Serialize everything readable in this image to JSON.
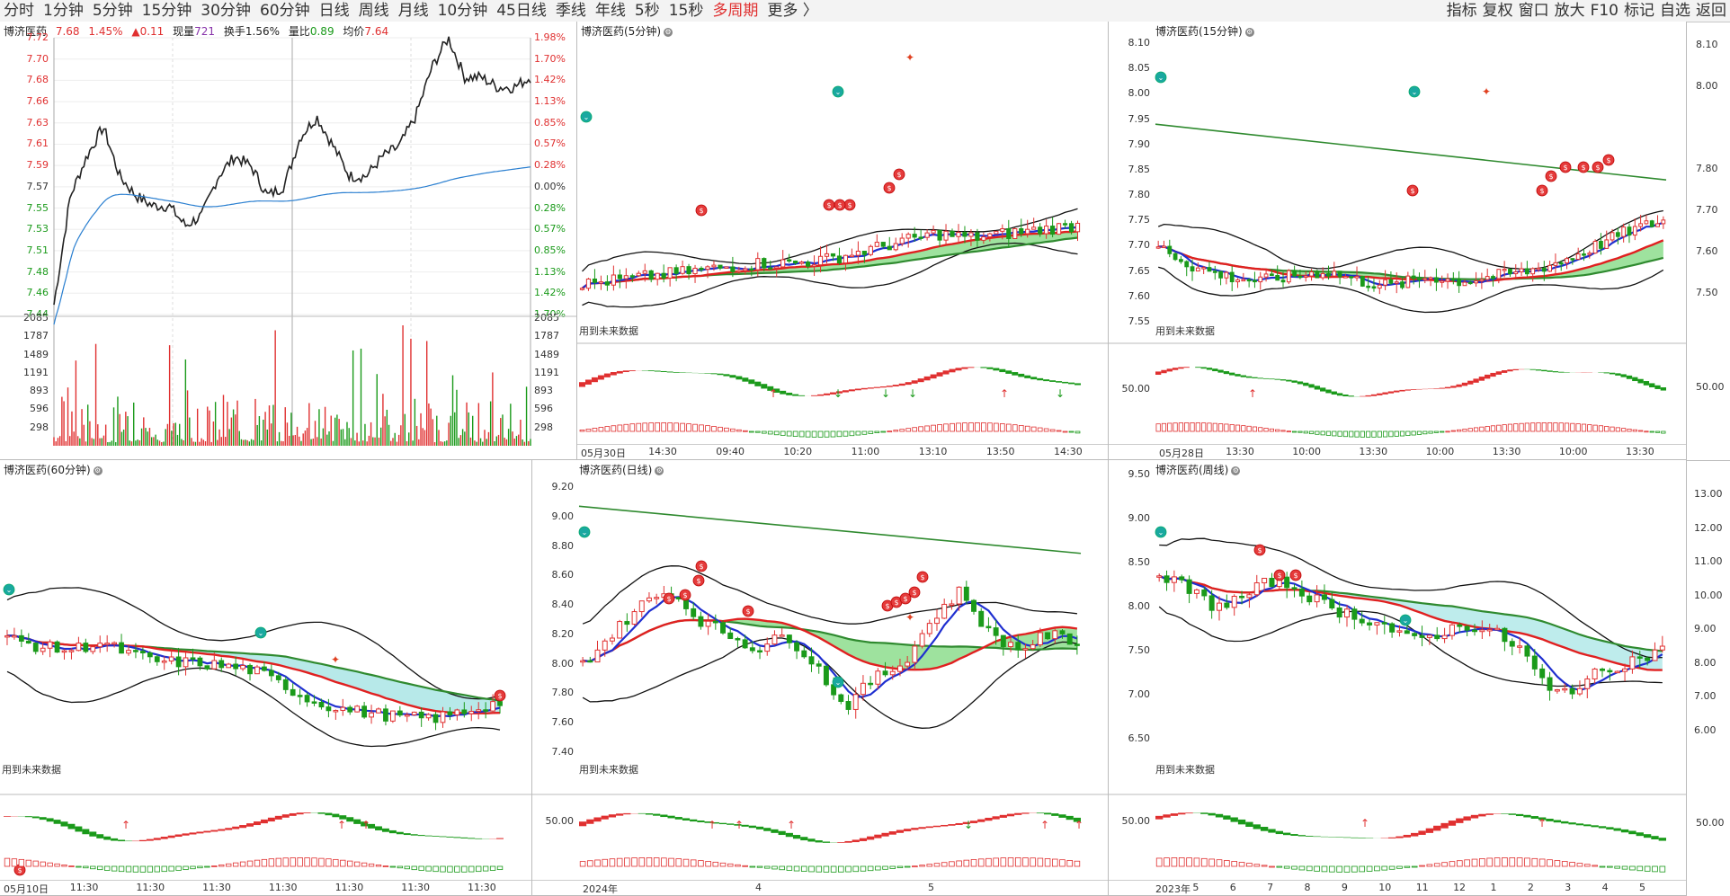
{
  "toolbar": {
    "periods": [
      "分时",
      "1分钟",
      "5分钟",
      "15分钟",
      "30分钟",
      "60分钟",
      "日线",
      "周线",
      "月线",
      "10分钟",
      "45日线",
      "季线",
      "年线",
      "5秒",
      "15秒",
      "多周期",
      "更多 〉"
    ],
    "active_period": "多周期",
    "tools": [
      "指标",
      "复权",
      "窗口",
      "放大",
      "F10",
      "标记",
      "自选",
      "返回"
    ]
  },
  "stock_name": "博济医药",
  "intraday": {
    "title": "博济医药",
    "price": "7.68",
    "pct": "1.45%",
    "change": "▲0.11",
    "volume_label": "现量",
    "volume": "721",
    "turnover_label": "换手",
    "turnover": "1.56%",
    "ratio_label": "量比",
    "ratio": "0.89",
    "avg_label": "均价",
    "avg": "7.64",
    "price_ticks": [
      "7.72",
      "7.70",
      "7.68",
      "7.66",
      "7.63",
      "7.61",
      "7.59",
      "7.57",
      "7.55",
      "7.53",
      "7.51",
      "7.48",
      "7.46",
      "7.44"
    ],
    "pct_ticks": [
      "1.98%",
      "1.70%",
      "1.42%",
      "1.13%",
      "0.85%",
      "0.57%",
      "0.28%",
      "0.00%",
      "0.28%",
      "0.57%",
      "0.85%",
      "1.13%",
      "1.42%",
      "1.70%"
    ],
    "vol_ticks": [
      "2085",
      "1787",
      "1489",
      "1191",
      "893",
      "596",
      "298"
    ]
  },
  "panels": {
    "m5": {
      "title": "博济医药(5分钟)",
      "future": "用到未来数据",
      "xlabels": [
        "05月30日",
        "14:30",
        "09:40",
        "10:20",
        "11:00",
        "13:10",
        "13:50",
        "14:30"
      ]
    },
    "m15": {
      "title": "博济医药(15分钟)",
      "future": "用到未来数据",
      "yticks": [
        "8.10",
        "8.05",
        "8.00",
        "7.95",
        "7.90",
        "7.85",
        "7.80",
        "7.75",
        "7.70",
        "7.65",
        "7.60",
        "7.55"
      ],
      "ind_tick": "50.00",
      "xlabels": [
        "05月28日",
        "13:30",
        "10:00",
        "13:30",
        "10:00",
        "13:30",
        "10:00",
        "13:30"
      ]
    },
    "right_top": {
      "yticks": [
        "8.10",
        "8.00",
        "7.80",
        "7.70",
        "7.60",
        "7.50"
      ],
      "ind_tick": "50.00"
    },
    "m60": {
      "title": "博济医药(60分钟)",
      "future": "用到未来数据",
      "xlabels": [
        "05月10日",
        "11:30",
        "11:30",
        "11:30",
        "11:30",
        "11:30",
        "11:30",
        "11:30"
      ]
    },
    "day": {
      "title": "博济医药(日线)",
      "future": "用到未来数据",
      "yticks": [
        "9.20",
        "9.00",
        "8.80",
        "8.60",
        "8.40",
        "8.20",
        "8.00",
        "7.80",
        "7.60",
        "7.40"
      ],
      "ind_tick": "50.00",
      "xlabels": [
        "2024年",
        "4",
        "5"
      ]
    },
    "week": {
      "title": "博济医药(周线)",
      "future": "用到未来数据",
      "yticks": [
        "9.50",
        "9.00",
        "8.50",
        "8.00",
        "7.50",
        "7.00",
        "6.50"
      ],
      "ind_tick": "50.00",
      "xlabels": [
        "2023年",
        "5",
        "6",
        "7",
        "8",
        "9",
        "10",
        "11",
        "12",
        "1",
        "2",
        "3",
        "4",
        "5"
      ]
    },
    "right_bottom": {
      "yticks": [
        "13.00",
        "12.00",
        "11.00",
        "10.00",
        "9.00",
        "8.00",
        "7.00",
        "6.00"
      ],
      "ind_tick": "50.00"
    }
  },
  "colors": {
    "up": "#e03030",
    "down": "#1a9a1a",
    "ma_blue": "#1f2fd0",
    "ma_red": "#e02020",
    "band_green": "#7ed87e",
    "band_cyan": "#a8e6e6"
  }
}
